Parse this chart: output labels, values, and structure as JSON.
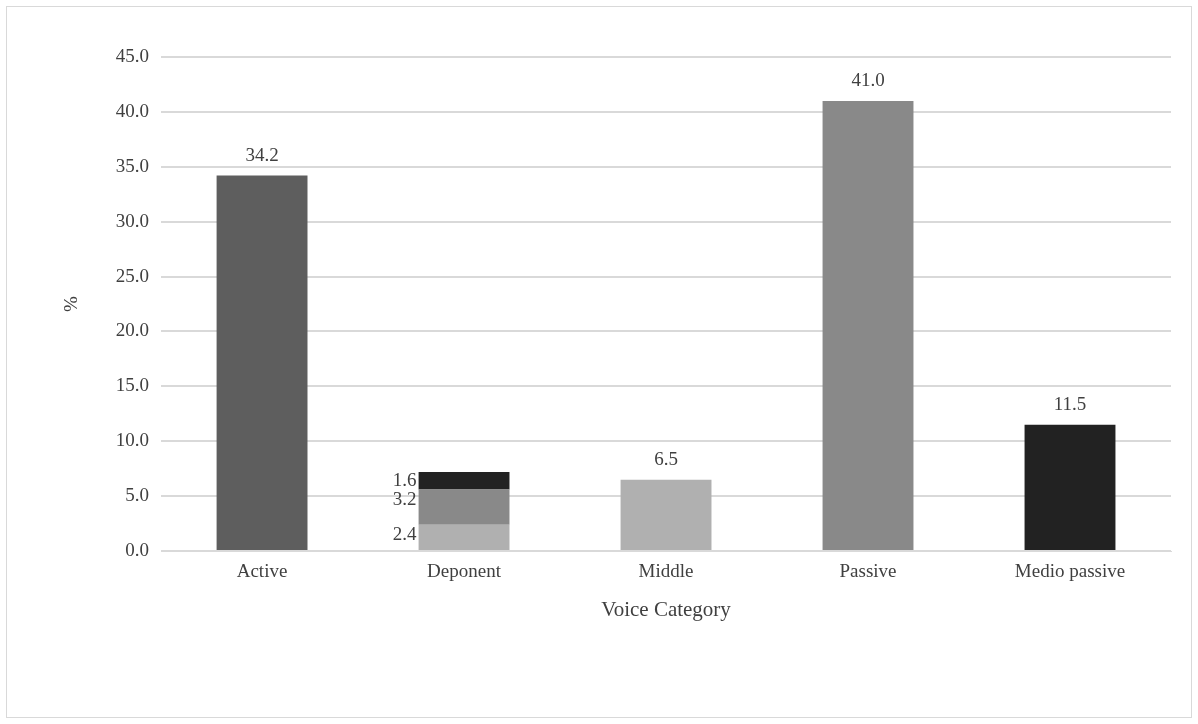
{
  "chart_data": {
    "type": "bar",
    "xlabel": "Voice Category",
    "ylabel": "%",
    "stacked": true,
    "grid": "y",
    "legend": false,
    "categories": [
      "Active",
      "Deponent",
      "Middle",
      "Passive",
      "Medio passive"
    ],
    "series": [
      {
        "colors": [
          "#5e5e5e",
          "#b0b0b0",
          "#b0b0b0",
          "#898989",
          "#222222"
        ],
        "values": [
          34.2,
          2.4,
          6.5,
          41.0,
          11.5
        ],
        "value_labels": [
          "34.2",
          "2.4",
          "6.5",
          "41.0",
          "11.5"
        ]
      },
      {
        "color": "#898989",
        "values": [
          null,
          3.2,
          null,
          null,
          null
        ],
        "value_labels": [
          null,
          "3.2",
          null,
          null,
          null
        ]
      },
      {
        "color": "#222222",
        "values": [
          null,
          1.6,
          null,
          null,
          null
        ],
        "value_labels": [
          null,
          "1.6",
          null,
          null,
          null
        ]
      }
    ],
    "ylim": [
      0,
      45
    ],
    "yticks": [
      {
        "value": 0,
        "label": "0.0"
      },
      {
        "value": 5,
        "label": "5.0"
      },
      {
        "value": 10,
        "label": "10.0"
      },
      {
        "value": 15,
        "label": "15.0"
      },
      {
        "value": 20,
        "label": "20.0"
      },
      {
        "value": 25,
        "label": "25.0"
      },
      {
        "value": 30,
        "label": "30.0"
      },
      {
        "value": 35,
        "label": "35.0"
      },
      {
        "value": 40,
        "label": "40.0"
      },
      {
        "value": 45,
        "label": "45.0"
      }
    ]
  }
}
